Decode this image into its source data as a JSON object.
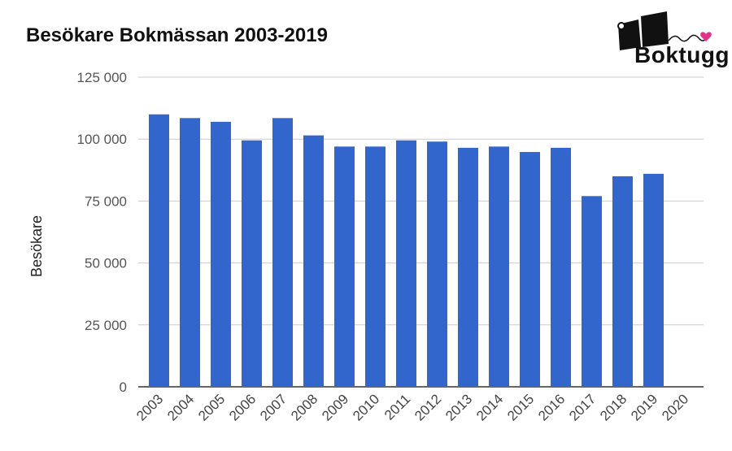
{
  "chart_data": {
    "type": "bar",
    "title": "Besökare Bokmässan 2003-2019",
    "ylabel": "Besökare",
    "xlabel": "",
    "categories": [
      "2003",
      "2004",
      "2005",
      "2006",
      "2007",
      "2008",
      "2009",
      "2010",
      "2011",
      "2012",
      "2013",
      "2014",
      "2015",
      "2016",
      "2017",
      "2018",
      "2019",
      "2020"
    ],
    "values": [
      110000,
      108500,
      107000,
      99500,
      108500,
      101500,
      97000,
      97000,
      99500,
      99000,
      96500,
      97000,
      94800,
      96500,
      77000,
      85000,
      86000,
      null
    ],
    "ylim": [
      0,
      125000
    ],
    "yticks": [
      0,
      25000,
      50000,
      75000,
      100000,
      125000
    ],
    "ytick_labels": [
      "0",
      "25 000",
      "50 000",
      "75 000",
      "100 000",
      "125 000"
    ],
    "grid": true,
    "bar_color": "#3366cc"
  },
  "logo": {
    "text": "Boktugg",
    "heart_color": "#e0338a"
  }
}
